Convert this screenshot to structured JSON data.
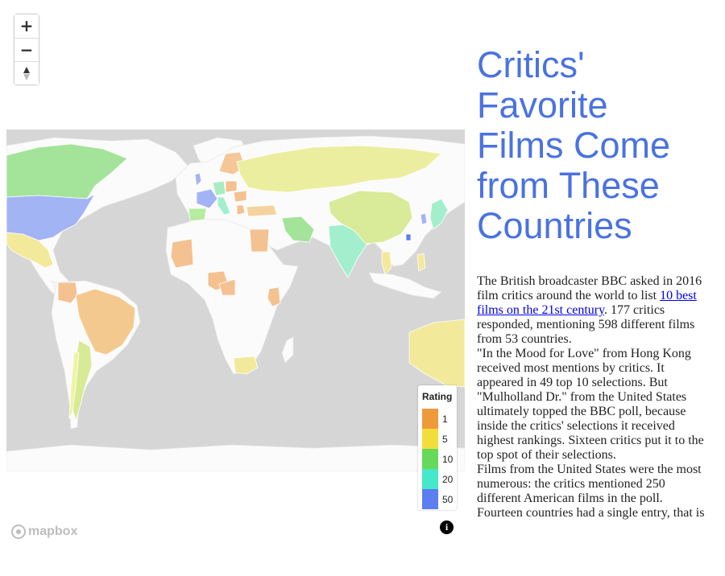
{
  "map": {
    "zoom_in_symbol": "+",
    "zoom_out_symbol": "−",
    "compass_icon": "compass-icon",
    "attribution_symbol": "i",
    "logo_text": "mapbox",
    "colors": {
      "ocean": "#d6d6d6",
      "land_no_data": "#fbfbfb",
      "border": "#e2e2e2"
    }
  },
  "legend": {
    "title": "Rating",
    "items": [
      {
        "label": "1",
        "color": "#ee9a3a"
      },
      {
        "label": "5",
        "color": "#f2de3a"
      },
      {
        "label": "10",
        "color": "#66d95a"
      },
      {
        "label": "20",
        "color": "#45e8c8"
      },
      {
        "label": "50",
        "color": "#5b7ef0"
      }
    ]
  },
  "article": {
    "title": "Critics' Favorite Films Come from These Countries",
    "p1_before": "The British broadcaster BBC asked in 2016 film critics around the world to list ",
    "p1_link": "10 best films on the 21st century",
    "p1_after": ". 177 critics responded, mentioning 598 different films from 53 countries.",
    "p2": "\"In the Mood for Love\" from Hong Kong received most mentions by critics. It appeared in 49 top 10 selections. But \"Mulholland Dr.\" from the United States ultimately topped the BBC poll, because inside the critics' selections it received highest rankings. Sixteen critics put it to the top spot of their selections.",
    "p3": "Films from the United States were the most numerous: the critics mentioned 250 different American films in the poll. Fourteen countries had a single entry, that is"
  }
}
